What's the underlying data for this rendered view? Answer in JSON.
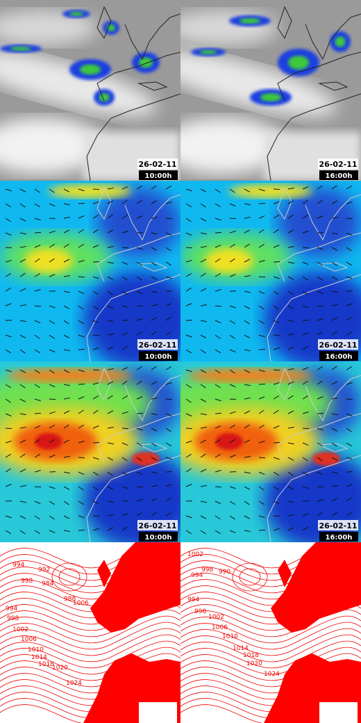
{
  "panels": [
    {
      "date": "26-02-11",
      "time": "10:00h"
    },
    {
      "date": "26-02-11",
      "time": "16:00h"
    },
    {
      "date": "26-02-11",
      "time": "10:00h"
    },
    {
      "date": "26-02-11",
      "time": "16:00h"
    },
    {
      "date": "26-02-11",
      "time": "10:00h"
    },
    {
      "date": "26-02-11",
      "time": "16:00h"
    }
  ],
  "isobars": [
    [
      "994",
      "998",
      "992",
      "984",
      "988",
      "994",
      "998",
      "1002",
      "1006",
      "1010",
      "1014",
      "1018",
      "1020",
      "1024",
      "1006"
    ],
    [
      "1002",
      "994",
      "998",
      "990",
      "994",
      "998",
      "1002",
      "1006",
      "1010",
      "1014",
      "1018",
      "1020",
      "1024",
      "998"
    ]
  ]
}
